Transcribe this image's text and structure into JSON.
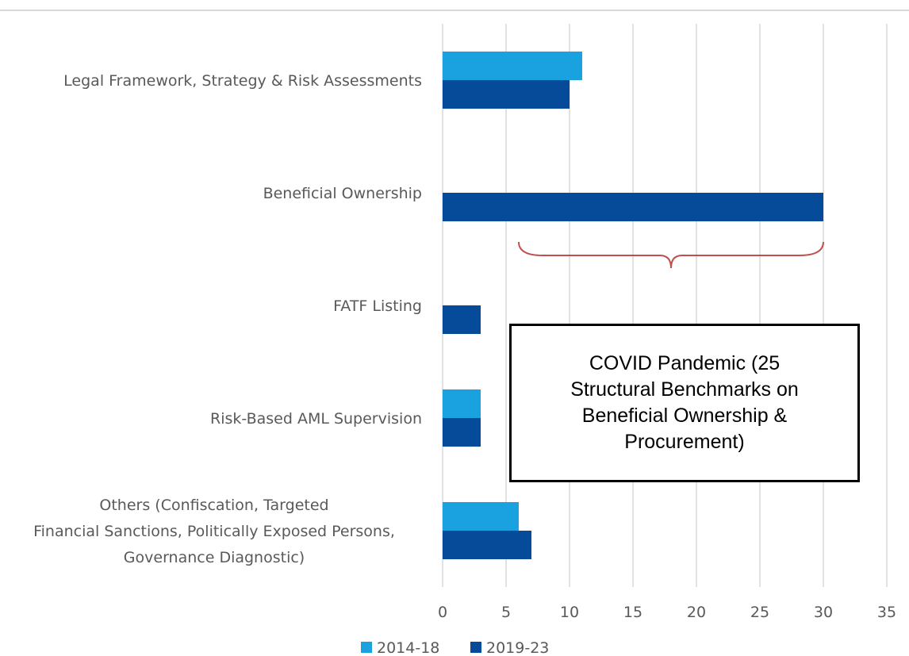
{
  "chart_data": {
    "type": "bar",
    "orientation": "horizontal",
    "categories": [
      "Legal Framework, Strategy & Risk Assessments",
      "Beneficial Ownership",
      "FATF Listing",
      "Risk-Based AML Supervision",
      "Others (Confiscation, Targeted Financial Sanctions, Politically Exposed Persons, Governance Diagnostic)"
    ],
    "category_lines": [
      [
        "Legal Framework, Strategy & Risk Assessments"
      ],
      [
        "Beneficial Ownership"
      ],
      [
        "FATF Listing"
      ],
      [
        "Risk-Based AML Supervision"
      ],
      [
        "Others (Confiscation, Targeted",
        "Financial Sanctions, Politically Exposed Persons,",
        "Governance Diagnostic)"
      ]
    ],
    "series": [
      {
        "name": "2014-18",
        "color": "#1aa1e0",
        "values": [
          11,
          0,
          0,
          3,
          6
        ]
      },
      {
        "name": "2019-23",
        "color": "#054b99",
        "values": [
          10,
          30,
          3,
          3,
          7
        ]
      }
    ],
    "xlim": [
      0,
      35
    ],
    "xticks": [
      0,
      5,
      10,
      15,
      20,
      25,
      30,
      35
    ],
    "grid": true,
    "legend_position": "bottom",
    "annotation": {
      "text": "COVID Pandemic (25 Structural Benchmarks on Beneficial Ownership & Procurement)",
      "brace_from": 6,
      "brace_to": 30,
      "brace_color": "#c0504d"
    }
  }
}
